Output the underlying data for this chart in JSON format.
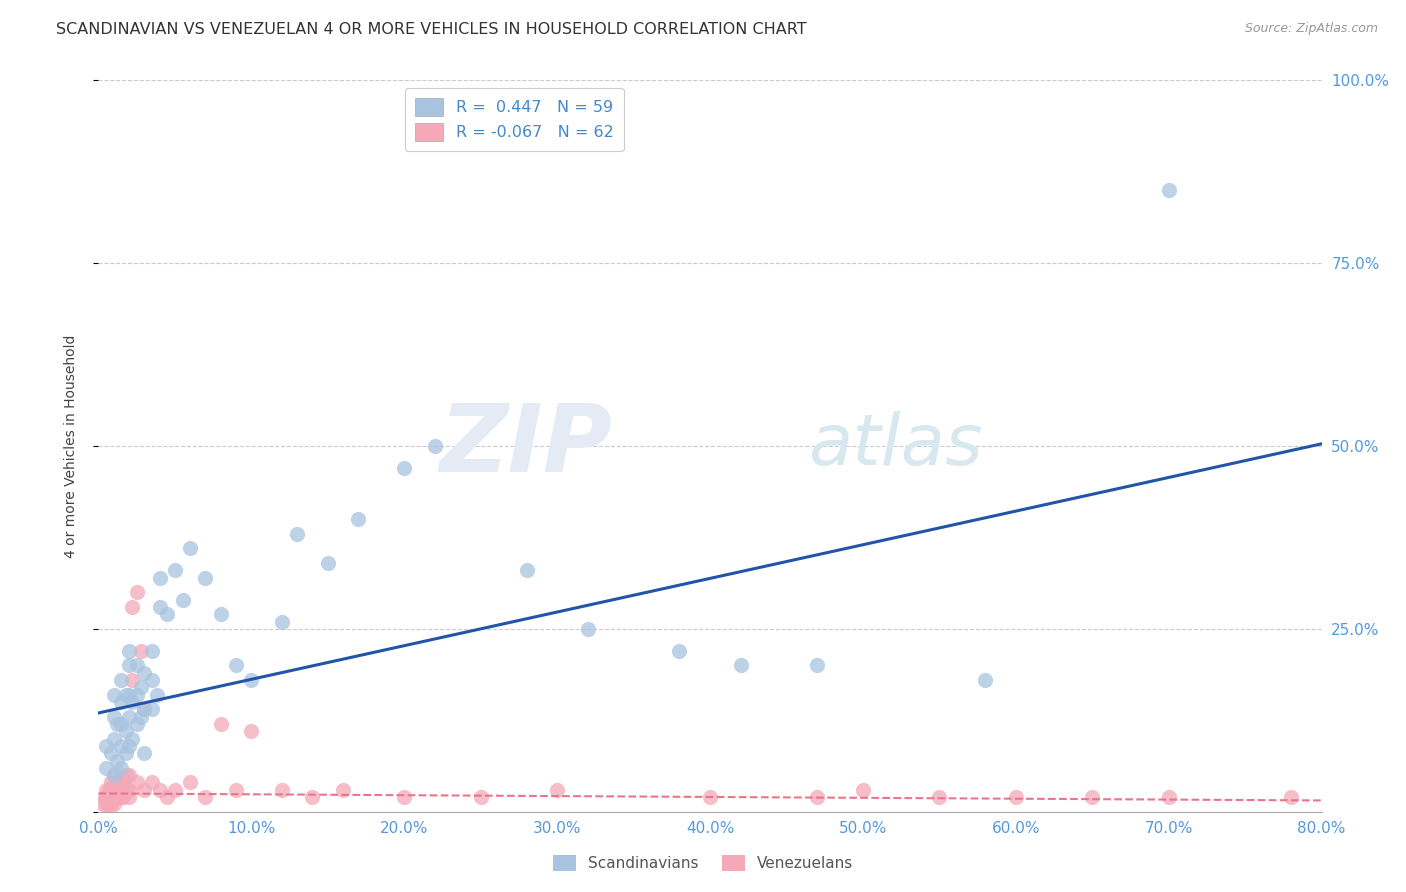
{
  "title": "SCANDINAVIAN VS VENEZUELAN 4 OR MORE VEHICLES IN HOUSEHOLD CORRELATION CHART",
  "source": "Source: ZipAtlas.com",
  "ylabel": "4 or more Vehicles in Household",
  "legend_R": [
    "0.447",
    "-0.067"
  ],
  "legend_N": [
    "59",
    "62"
  ],
  "blue_color": "#A8C4E0",
  "pink_color": "#F4A8B8",
  "blue_line_color": "#2255AA",
  "pink_line_color": "#E8758A",
  "background_color": "#FFFFFF",
  "watermark_zip": "ZIP",
  "watermark_atlas": "atlas",
  "xlim": [
    0.0,
    0.8
  ],
  "ylim": [
    0.0,
    1.0
  ],
  "xticks": [
    0.0,
    0.1,
    0.2,
    0.3,
    0.4,
    0.5,
    0.6,
    0.7,
    0.8
  ],
  "yticks": [
    0.0,
    0.25,
    0.5,
    0.75,
    1.0
  ],
  "right_ytick_labels": [
    "100.0%",
    "75.0%",
    "50.0%",
    "25.0%",
    ""
  ],
  "right_ytick_vals": [
    1.0,
    0.75,
    0.5,
    0.25,
    0.0
  ],
  "scand_intercept": 0.135,
  "scand_slope": 0.46,
  "vene_intercept": 0.025,
  "vene_slope": -0.012,
  "scandinavian_x": [
    0.005,
    0.005,
    0.008,
    0.01,
    0.01,
    0.01,
    0.01,
    0.012,
    0.012,
    0.015,
    0.015,
    0.015,
    0.015,
    0.015,
    0.018,
    0.018,
    0.018,
    0.02,
    0.02,
    0.02,
    0.02,
    0.02,
    0.022,
    0.022,
    0.025,
    0.025,
    0.025,
    0.028,
    0.028,
    0.03,
    0.03,
    0.03,
    0.035,
    0.035,
    0.035,
    0.038,
    0.04,
    0.04,
    0.045,
    0.05,
    0.055,
    0.06,
    0.07,
    0.08,
    0.09,
    0.1,
    0.12,
    0.13,
    0.15,
    0.17,
    0.2,
    0.22,
    0.28,
    0.32,
    0.38,
    0.42,
    0.47,
    0.58,
    0.7
  ],
  "scandinavian_y": [
    0.06,
    0.09,
    0.08,
    0.05,
    0.1,
    0.13,
    0.16,
    0.07,
    0.12,
    0.06,
    0.09,
    0.12,
    0.15,
    0.18,
    0.08,
    0.11,
    0.16,
    0.09,
    0.13,
    0.16,
    0.2,
    0.22,
    0.1,
    0.15,
    0.12,
    0.16,
    0.2,
    0.13,
    0.17,
    0.08,
    0.14,
    0.19,
    0.14,
    0.18,
    0.22,
    0.16,
    0.28,
    0.32,
    0.27,
    0.33,
    0.29,
    0.36,
    0.32,
    0.27,
    0.2,
    0.18,
    0.26,
    0.38,
    0.34,
    0.4,
    0.47,
    0.5,
    0.33,
    0.25,
    0.22,
    0.2,
    0.2,
    0.18,
    0.85
  ],
  "venezuelan_x": [
    0.003,
    0.004,
    0.005,
    0.005,
    0.005,
    0.006,
    0.006,
    0.007,
    0.007,
    0.008,
    0.008,
    0.008,
    0.01,
    0.01,
    0.01,
    0.01,
    0.01,
    0.012,
    0.012,
    0.012,
    0.014,
    0.014,
    0.015,
    0.015,
    0.015,
    0.016,
    0.016,
    0.018,
    0.018,
    0.02,
    0.02,
    0.02,
    0.022,
    0.022,
    0.025,
    0.025,
    0.028,
    0.03,
    0.03,
    0.035,
    0.04,
    0.045,
    0.05,
    0.06,
    0.07,
    0.08,
    0.09,
    0.1,
    0.12,
    0.14,
    0.16,
    0.2,
    0.25,
    0.3,
    0.4,
    0.47,
    0.5,
    0.55,
    0.6,
    0.65,
    0.7,
    0.78
  ],
  "venezuelan_y": [
    0.01,
    0.02,
    0.01,
    0.02,
    0.03,
    0.01,
    0.02,
    0.02,
    0.03,
    0.01,
    0.03,
    0.04,
    0.01,
    0.02,
    0.03,
    0.04,
    0.05,
    0.02,
    0.03,
    0.04,
    0.02,
    0.04,
    0.02,
    0.03,
    0.05,
    0.02,
    0.04,
    0.03,
    0.05,
    0.02,
    0.03,
    0.05,
    0.18,
    0.28,
    0.3,
    0.04,
    0.22,
    0.14,
    0.03,
    0.04,
    0.03,
    0.02,
    0.03,
    0.04,
    0.02,
    0.12,
    0.03,
    0.11,
    0.03,
    0.02,
    0.03,
    0.02,
    0.02,
    0.03,
    0.02,
    0.02,
    0.03,
    0.02,
    0.02,
    0.02,
    0.02,
    0.02
  ]
}
